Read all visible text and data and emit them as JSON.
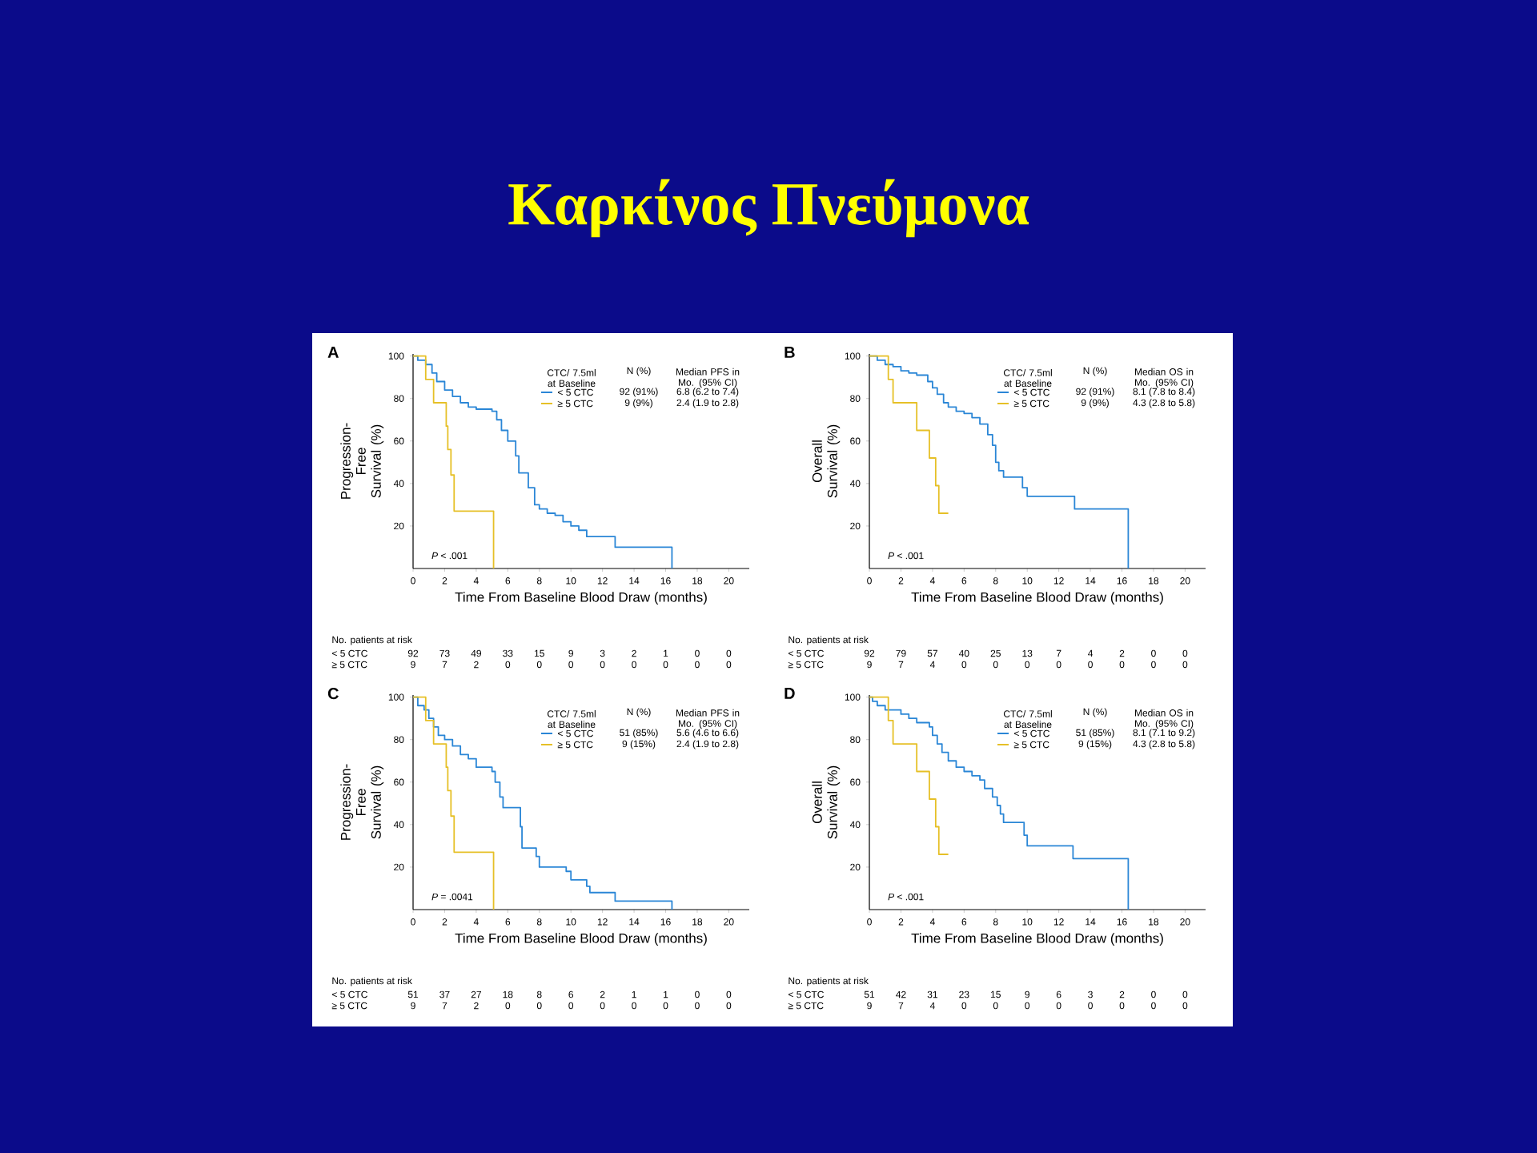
{
  "chart_data": [
    {
      "type": "other",
      "title": "Καρκίνος Πνεύμονα"
    },
    {
      "type": "step",
      "title": "A",
      "xlabel": "Time From Baseline Blood Draw (months)",
      "ylabel": "Progression-Free Survival (%)",
      "legend_title": "CTC/ 7.5ml at Baseline",
      "legend": "top right",
      "xlim": [
        0,
        21.3
      ],
      "ylim": [
        0,
        101
      ],
      "xticks": [
        0,
        2,
        4,
        6,
        8,
        10,
        12,
        14,
        16,
        18,
        20
      ],
      "yticks": [
        20,
        40,
        60,
        80,
        100
      ],
      "series": [
        {
          "name": "< 5 CTC",
          "color": "#2a86d6",
          "x": [
            0,
            0.3,
            0.8,
            1.2,
            1.5,
            2,
            2.5,
            3,
            3.5,
            4,
            5,
            5.3,
            5.6,
            6,
            6.5,
            6.7,
            7.3,
            7.7,
            8,
            8.5,
            9,
            9.5,
            10,
            10.5,
            11,
            12.8,
            16.4
          ],
          "values": [
            100,
            98,
            96,
            92,
            88,
            84,
            81,
            78,
            76,
            75,
            74,
            70,
            65,
            60,
            53,
            45,
            38,
            30,
            28,
            26,
            25,
            22,
            20,
            18,
            15,
            10,
            0
          ]
        },
        {
          "name": "≥ 5 CTC",
          "color": "#e6c027",
          "x": [
            0,
            0.8,
            1.3,
            2.1,
            2.2,
            2.4,
            2.6,
            5.1
          ],
          "values": [
            100,
            89,
            78,
            67,
            56,
            44,
            27,
            0
          ]
        }
      ],
      "annotations": [
        "*P* < .001",
        "N (%)",
        "Median PFS in Mo. (95% CI)",
        "92 (91%)",
        "6.8 (6.2 to 7.4)",
        "9 (9%)",
        "2.4 (1.9 to 2.8)",
        "No. patients at risk",
        "92",
        "73",
        "49",
        "33",
        "15",
        "9",
        "3",
        "2",
        "1",
        "0",
        "0",
        "9",
        "7",
        "2",
        "0",
        "0",
        "0",
        "0",
        "0",
        "0",
        "0",
        "0"
      ]
    },
    {
      "type": "step",
      "title": "B",
      "xlabel": "Time From Baseline Blood Draw (months)",
      "ylabel": "Overall Survival (%)",
      "legend_title": "CTC/ 7.5ml at Baseline",
      "legend": "top right",
      "xlim": [
        0,
        21.3
      ],
      "ylim": [
        0,
        101
      ],
      "xticks": [
        0,
        2,
        4,
        6,
        8,
        10,
        12,
        14,
        16,
        18,
        20
      ],
      "yticks": [
        20,
        40,
        60,
        80,
        100
      ],
      "series": [
        {
          "name": "< 5 CTC",
          "color": "#2a86d6",
          "x": [
            0,
            0.5,
            1,
            1.5,
            2,
            2.5,
            3,
            3.7,
            4,
            4.3,
            4.7,
            5,
            5.5,
            6,
            6.5,
            7,
            7.5,
            7.8,
            8,
            8.2,
            8.5,
            9.7,
            10,
            13,
            16.4
          ],
          "values": [
            100,
            98,
            96,
            95,
            93,
            92,
            91,
            88,
            85,
            82,
            78,
            76,
            74,
            73,
            71,
            68,
            63,
            58,
            50,
            46,
            43,
            38,
            34,
            28,
            0
          ]
        },
        {
          "name": "≥ 5 CTC",
          "color": "#e6c027",
          "x": [
            0,
            1.2,
            1.5,
            3,
            3.8,
            4.2,
            4.4,
            5
          ],
          "values": [
            100,
            89,
            78,
            65,
            52,
            39,
            26,
            26
          ]
        }
      ],
      "annotations": [
        "*P* < .001",
        "N (%)",
        "Median OS in Mo. (95% CI)",
        "92 (91%)",
        "8.1 (7.8 to 8.4)",
        "9 (9%)",
        "4.3 (2.8 to 5.8)",
        "No. patients at risk",
        "92",
        "79",
        "57",
        "40",
        "25",
        "13",
        "7",
        "4",
        "2",
        "0",
        "0",
        "9",
        "7",
        "4",
        "0",
        "0",
        "0",
        "0",
        "0",
        "0",
        "0",
        "0"
      ]
    },
    {
      "type": "step",
      "title": "C",
      "xlabel": "Time From Baseline Blood Draw (months)",
      "ylabel": "Progression-Free Survival (%)",
      "legend_title": "CTC/ 7.5ml at Baseline",
      "legend": "top right",
      "xlim": [
        0,
        21.3
      ],
      "ylim": [
        0,
        101
      ],
      "xticks": [
        0,
        2,
        4,
        6,
        8,
        10,
        12,
        14,
        16,
        18,
        20
      ],
      "yticks": [
        20,
        40,
        60,
        80,
        100
      ],
      "series": [
        {
          "name": "< 5 CTC",
          "color": "#2a86d6",
          "x": [
            0,
            0.3,
            0.7,
            1,
            1.3,
            1.6,
            2,
            2.5,
            3,
            3.5,
            4,
            5,
            5.2,
            5.5,
            5.7,
            6.8,
            6.9,
            7.8,
            8,
            9.7,
            10,
            11,
            11.2,
            12.8,
            16.4
          ],
          "values": [
            100,
            96,
            94,
            90,
            86,
            82,
            80,
            77,
            73,
            71,
            67,
            65,
            60,
            53,
            48,
            39,
            29,
            25,
            20,
            18,
            14,
            11,
            8,
            4,
            0
          ]
        },
        {
          "name": "≥ 5 CTC",
          "color": "#e6c027",
          "x": [
            0,
            0.8,
            1.3,
            2.1,
            2.2,
            2.4,
            2.6,
            5.1
          ],
          "values": [
            100,
            89,
            78,
            67,
            56,
            44,
            27,
            0
          ]
        }
      ],
      "annotations": [
        "*P* = .0041",
        "N (%)",
        "Median PFS in Mo. (95% CI)",
        "51 (85%)",
        "5.6 (4.6 to 6.6)",
        "9 (15%)",
        "2.4 (1.9 to 2.8)",
        "No. patients at risk",
        "51",
        "37",
        "27",
        "18",
        "8",
        "6",
        "2",
        "1",
        "1",
        "0",
        "0",
        "9",
        "7",
        "2",
        "0",
        "0",
        "0",
        "0",
        "0",
        "0",
        "0",
        "0"
      ]
    },
    {
      "type": "step",
      "title": "D",
      "xlabel": "Time From Baseline Blood Draw (months)",
      "ylabel": "Overall Survival (%)",
      "legend_title": "CTC/ 7.5ml at Baseline",
      "legend": "top right",
      "xlim": [
        0,
        21.3
      ],
      "ylim": [
        0,
        101
      ],
      "xticks": [
        0,
        2,
        4,
        6,
        8,
        10,
        12,
        14,
        16,
        18,
        20
      ],
      "yticks": [
        20,
        40,
        60,
        80,
        100
      ],
      "series": [
        {
          "name": "< 5 CTC",
          "color": "#2a86d6",
          "x": [
            0,
            0.2,
            0.5,
            1,
            2,
            2.5,
            3,
            3.8,
            4,
            4.3,
            4.6,
            5,
            5.5,
            6,
            6.5,
            7,
            7.3,
            7.8,
            8.1,
            8.3,
            8.5,
            9.8,
            10,
            12.9,
            16.4
          ],
          "values": [
            100,
            98,
            96,
            94,
            92,
            90,
            88,
            86,
            82,
            78,
            74,
            70,
            67,
            65,
            63,
            61,
            57,
            53,
            49,
            45,
            41,
            35,
            30,
            24,
            0
          ]
        },
        {
          "name": "≥ 5 CTC",
          "color": "#e6c027",
          "x": [
            0,
            1.2,
            1.5,
            3,
            3.8,
            4.2,
            4.4,
            5
          ],
          "values": [
            100,
            89,
            78,
            65,
            52,
            39,
            26,
            26
          ]
        }
      ],
      "annotations": [
        "*P* < .001",
        "N (%)",
        "Median OS in Mo. (95% CI)",
        "51 (85%)",
        "8.1 (7.1 to 9.2)",
        "9 (15%)",
        "4.3 (2.8 to 5.8)",
        "No. patients at risk",
        "51",
        "42",
        "31",
        "23",
        "15",
        "9",
        "6",
        "3",
        "2",
        "0",
        "0",
        "9",
        "7",
        "4",
        "0",
        "0",
        "0",
        "0",
        "0",
        "0",
        "0",
        "0"
      ]
    }
  ]
}
